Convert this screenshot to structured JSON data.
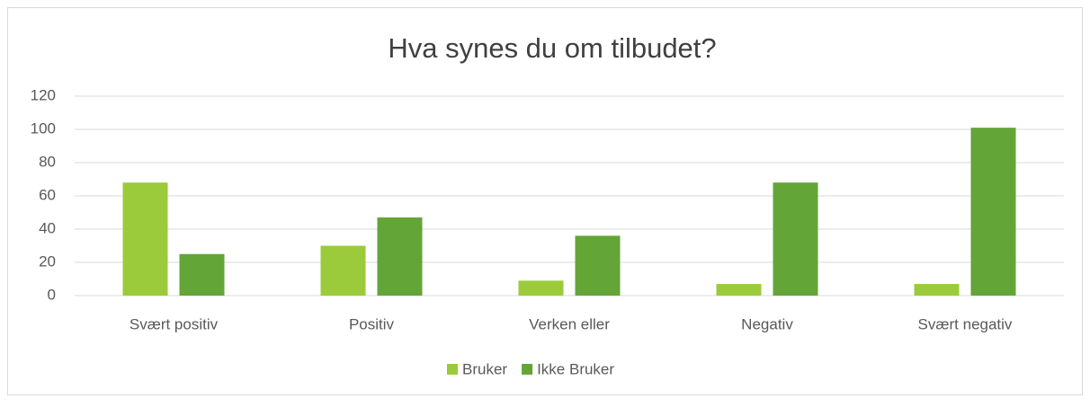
{
  "chart_data": {
    "type": "bar",
    "title": "Hva synes du om tilbudet?",
    "categories": [
      "Svært positiv",
      "Positiv",
      "Verken eller",
      "Negativ",
      "Svært negativ"
    ],
    "series": [
      {
        "name": "Bruker",
        "color": "#9bcb3b",
        "values": [
          68,
          30,
          9,
          7,
          7
        ]
      },
      {
        "name": "Ikke Bruker",
        "color": "#63a537",
        "values": [
          25,
          47,
          36,
          68,
          101
        ]
      }
    ],
    "ylim": [
      0,
      120
    ],
    "yticks": [
      0,
      20,
      40,
      60,
      80,
      100,
      120
    ],
    "grid": true,
    "legend": "bottom"
  }
}
